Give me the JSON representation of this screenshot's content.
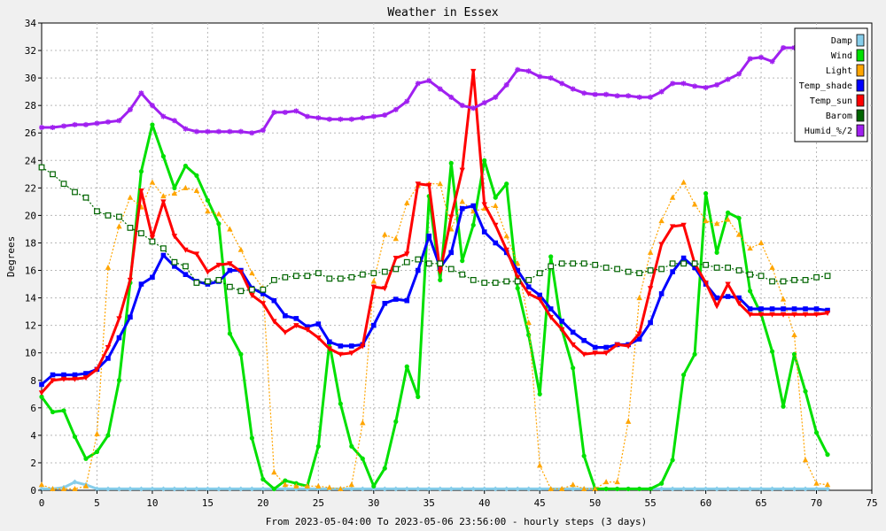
{
  "chart_data": {
    "type": "line",
    "title": "Weather in Essex",
    "xlabel": "From 2023-05-04:00 To 2023-05-06 23:56:00 - hourly steps (3 days)",
    "ylabel": "Degrees",
    "xlim": [
      0,
      75
    ],
    "ylim": [
      0,
      34
    ],
    "xticks": [
      0,
      5,
      10,
      15,
      20,
      25,
      30,
      35,
      40,
      45,
      50,
      55,
      60,
      65,
      70,
      75
    ],
    "yticks": [
      0,
      2,
      4,
      6,
      8,
      10,
      12,
      14,
      16,
      18,
      20,
      22,
      24,
      26,
      28,
      30,
      32,
      34
    ],
    "grid": true,
    "legend_position": "top-right",
    "x": [
      0,
      1,
      2,
      3,
      4,
      5,
      6,
      7,
      8,
      9,
      10,
      11,
      12,
      13,
      14,
      15,
      16,
      17,
      18,
      19,
      20,
      21,
      22,
      23,
      24,
      25,
      26,
      27,
      28,
      29,
      30,
      31,
      32,
      33,
      34,
      35,
      36,
      37,
      38,
      39,
      40,
      41,
      42,
      43,
      44,
      45,
      46,
      47,
      48,
      49,
      50,
      51,
      52,
      53,
      54,
      55,
      56,
      57,
      58,
      59,
      60,
      61,
      62,
      63,
      64,
      65,
      66,
      67,
      68,
      69,
      70,
      71
    ],
    "series": [
      {
        "name": "Damp",
        "color": "#87ceeb",
        "values": [
          0.1,
          0.1,
          0.2,
          0.6,
          0.4,
          0.1,
          0.1,
          0.1,
          0.1,
          0.1,
          0.1,
          0.1,
          0.1,
          0.1,
          0.1,
          0.1,
          0.1,
          0.1,
          0.1,
          0.1,
          0.1,
          0.1,
          0.1,
          0.1,
          0.1,
          0.1,
          0.1,
          0.1,
          0.1,
          0.1,
          0.1,
          0.1,
          0.1,
          0.1,
          0.1,
          0.1,
          0.1,
          0.1,
          0.1,
          0.1,
          0.1,
          0.1,
          0.1,
          0.1,
          0.1,
          0.1,
          0.1,
          0.1,
          0.1,
          0.1,
          0.1,
          0.1,
          0.1,
          0.1,
          0.1,
          0.1,
          0.1,
          0.1,
          0.1,
          0.1,
          0.1,
          0.1,
          0.1,
          0.1,
          0.1,
          0.1,
          0.1,
          0.1,
          0.1,
          0.1,
          0.1,
          0.1
        ]
      },
      {
        "name": "Wind",
        "color": "#00e000",
        "values": [
          6.8,
          5.7,
          5.8,
          3.9,
          2.3,
          2.8,
          4.0,
          8.0,
          15.1,
          23.2,
          26.6,
          24.3,
          22.0,
          23.6,
          22.9,
          21.1,
          19.4,
          11.4,
          9.9,
          3.8,
          0.8,
          0.1,
          0.7,
          0.5,
          0.3,
          3.2,
          10.7,
          6.3,
          3.2,
          2.3,
          0.3,
          1.6,
          5.0,
          9.0,
          6.8,
          21.4,
          15.3,
          23.8,
          16.7,
          19.3,
          24.0,
          21.3,
          22.3,
          14.7,
          11.3,
          7.0,
          17.0,
          11.7,
          8.9,
          2.5,
          0.1,
          0.1,
          0.1,
          0.1,
          0.1,
          0.1,
          0.5,
          2.2,
          8.4,
          9.9,
          21.6,
          17.3,
          20.2,
          19.8,
          14.5,
          12.8,
          10.1,
          6.1,
          9.9,
          7.2,
          4.2,
          2.6
        ]
      },
      {
        "name": "Light",
        "color": "#ffa500",
        "values": [
          0.4,
          0.1,
          0.1,
          0.1,
          0.3,
          4.1,
          16.2,
          19.2,
          21.3,
          20.6,
          22.4,
          21.4,
          21.6,
          22.0,
          21.8,
          20.3,
          20.1,
          19.0,
          17.5,
          15.8,
          14.7,
          1.3,
          0.4,
          0.3,
          0.3,
          0.3,
          0.2,
          0.1,
          0.4,
          4.9,
          15.2,
          18.6,
          18.3,
          20.9,
          22.2,
          22.3,
          22.3,
          19.0,
          21.0,
          20.3,
          20.5,
          20.7,
          18.5,
          16.5,
          12.2,
          1.8,
          0.1,
          0.1,
          0.4,
          0.1,
          0.1,
          0.6,
          0.6,
          5.0,
          14.0,
          17.3,
          19.6,
          21.3,
          22.4,
          20.8,
          19.6,
          19.4,
          19.7,
          18.6,
          17.6,
          18.0,
          16.2,
          13.9,
          11.3,
          2.2,
          0.5,
          0.4
        ]
      },
      {
        "name": "Temp_shade",
        "color": "#0000ff",
        "values": [
          7.7,
          8.4,
          8.4,
          8.4,
          8.5,
          8.8,
          9.6,
          11.1,
          12.6,
          15.0,
          15.5,
          17.1,
          16.3,
          15.7,
          15.2,
          15.0,
          15.2,
          16.0,
          16.0,
          14.7,
          14.3,
          13.8,
          12.7,
          12.5,
          11.9,
          12.1,
          10.8,
          10.5,
          10.5,
          10.6,
          12.0,
          13.6,
          13.9,
          13.8,
          16.0,
          18.5,
          16.2,
          17.3,
          20.5,
          20.7,
          18.8,
          18.0,
          17.3,
          16.0,
          14.8,
          14.2,
          13.2,
          12.3,
          11.5,
          10.9,
          10.4,
          10.4,
          10.6,
          10.6,
          11.0,
          12.2,
          14.3,
          15.9,
          16.9,
          16.2,
          15.0,
          14.0,
          14.1,
          14.0,
          13.2,
          13.2,
          13.2,
          13.2,
          13.2,
          13.2,
          13.2,
          13.1
        ]
      },
      {
        "name": "Temp_sun",
        "color": "#ff0000",
        "values": [
          7.1,
          8.0,
          8.1,
          8.1,
          8.2,
          8.8,
          10.4,
          12.5,
          15.3,
          21.8,
          18.4,
          21.0,
          18.5,
          17.5,
          17.2,
          15.9,
          16.4,
          16.5,
          15.9,
          14.2,
          13.6,
          12.3,
          11.5,
          12.0,
          11.7,
          11.1,
          10.3,
          9.9,
          10.0,
          10.5,
          14.8,
          14.7,
          16.9,
          17.2,
          22.3,
          22.2,
          15.9,
          19.9,
          23.3,
          30.5,
          20.8,
          19.3,
          17.5,
          15.5,
          14.3,
          13.9,
          12.6,
          11.7,
          10.6,
          9.9,
          10.0,
          10.0,
          10.6,
          10.5,
          11.4,
          14.7,
          17.9,
          19.2,
          19.3,
          16.5,
          15.1,
          13.4,
          15.0,
          13.6,
          12.8,
          12.8,
          12.8,
          12.8,
          12.8,
          12.8,
          12.8,
          12.9
        ]
      },
      {
        "name": "Barom",
        "color": "#006400",
        "values": [
          23.5,
          23.0,
          22.3,
          21.7,
          21.3,
          20.3,
          20.0,
          19.9,
          19.1,
          18.7,
          18.1,
          17.6,
          16.6,
          16.3,
          15.1,
          15.2,
          15.3,
          14.8,
          14.5,
          14.6,
          14.6,
          15.3,
          15.5,
          15.6,
          15.6,
          15.8,
          15.4,
          15.4,
          15.5,
          15.7,
          15.8,
          15.9,
          16.1,
          16.6,
          16.8,
          16.5,
          16.5,
          16.1,
          15.7,
          15.3,
          15.1,
          15.1,
          15.2,
          15.2,
          15.3,
          15.8,
          16.3,
          16.5,
          16.5,
          16.5,
          16.4,
          16.2,
          16.1,
          15.9,
          15.8,
          16.0,
          16.1,
          16.5,
          16.5,
          16.5,
          16.4,
          16.2,
          16.2,
          16.0,
          15.7,
          15.6,
          15.2,
          15.2,
          15.3,
          15.3,
          15.5,
          15.6
        ]
      },
      {
        "name": "Humid_%/2",
        "color": "#a020f0",
        "values": [
          26.4,
          26.4,
          26.5,
          26.6,
          26.6,
          26.7,
          26.8,
          26.9,
          27.7,
          28.9,
          28.0,
          27.2,
          26.9,
          26.3,
          26.1,
          26.1,
          26.1,
          26.1,
          26.1,
          26.0,
          26.2,
          27.5,
          27.5,
          27.6,
          27.2,
          27.1,
          27.0,
          27.0,
          27.0,
          27.1,
          27.2,
          27.3,
          27.7,
          28.3,
          29.6,
          29.8,
          29.2,
          28.6,
          28.0,
          27.8,
          28.2,
          28.6,
          29.5,
          30.6,
          30.5,
          30.1,
          30.0,
          29.6,
          29.2,
          28.9,
          28.8,
          28.8,
          28.7,
          28.7,
          28.6,
          28.6,
          29.0,
          29.6,
          29.6,
          29.4,
          29.3,
          29.5,
          29.9,
          30.3,
          31.4,
          31.5,
          31.2,
          32.2,
          32.2,
          32.3,
          32.3,
          32.3
        ]
      }
    ]
  }
}
